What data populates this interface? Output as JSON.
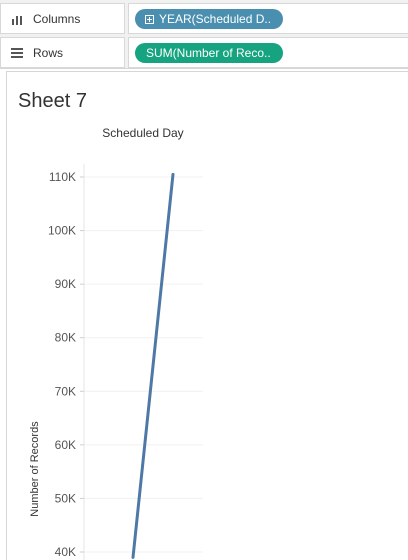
{
  "shelves": {
    "columns": {
      "label": "Columns",
      "pill": "YEAR(Scheduled D..",
      "icon": "columns-icon"
    },
    "rows": {
      "label": "Rows",
      "pill": "SUM(Number of Reco..",
      "icon": "rows-icon"
    }
  },
  "sheet": {
    "title": "Sheet 7"
  },
  "colors": {
    "blue_pill": "#4b8fb0",
    "green_pill": "#16a37f",
    "line": "#4e79a7",
    "shelf_bg": "#f1f1f1"
  },
  "chart_data": {
    "type": "line",
    "title": "Scheduled Day",
    "ylabel": "Number of Records",
    "xlabel": "",
    "ylim": [
      40000,
      110000
    ],
    "y_ticks": [
      {
        "value": 110000,
        "label": "110K"
      },
      {
        "value": 100000,
        "label": "100K"
      },
      {
        "value": 90000,
        "label": "90K"
      },
      {
        "value": 80000,
        "label": "80K"
      },
      {
        "value": 70000,
        "label": "70K"
      },
      {
        "value": 60000,
        "label": "60K"
      },
      {
        "value": 50000,
        "label": "50K"
      },
      {
        "value": 40000,
        "label": "40K"
      }
    ],
    "series": [
      {
        "values": [
          {
            "x": 0,
            "y": 39000
          },
          {
            "x": 1,
            "y": 110500
          }
        ]
      }
    ],
    "grid": true
  }
}
